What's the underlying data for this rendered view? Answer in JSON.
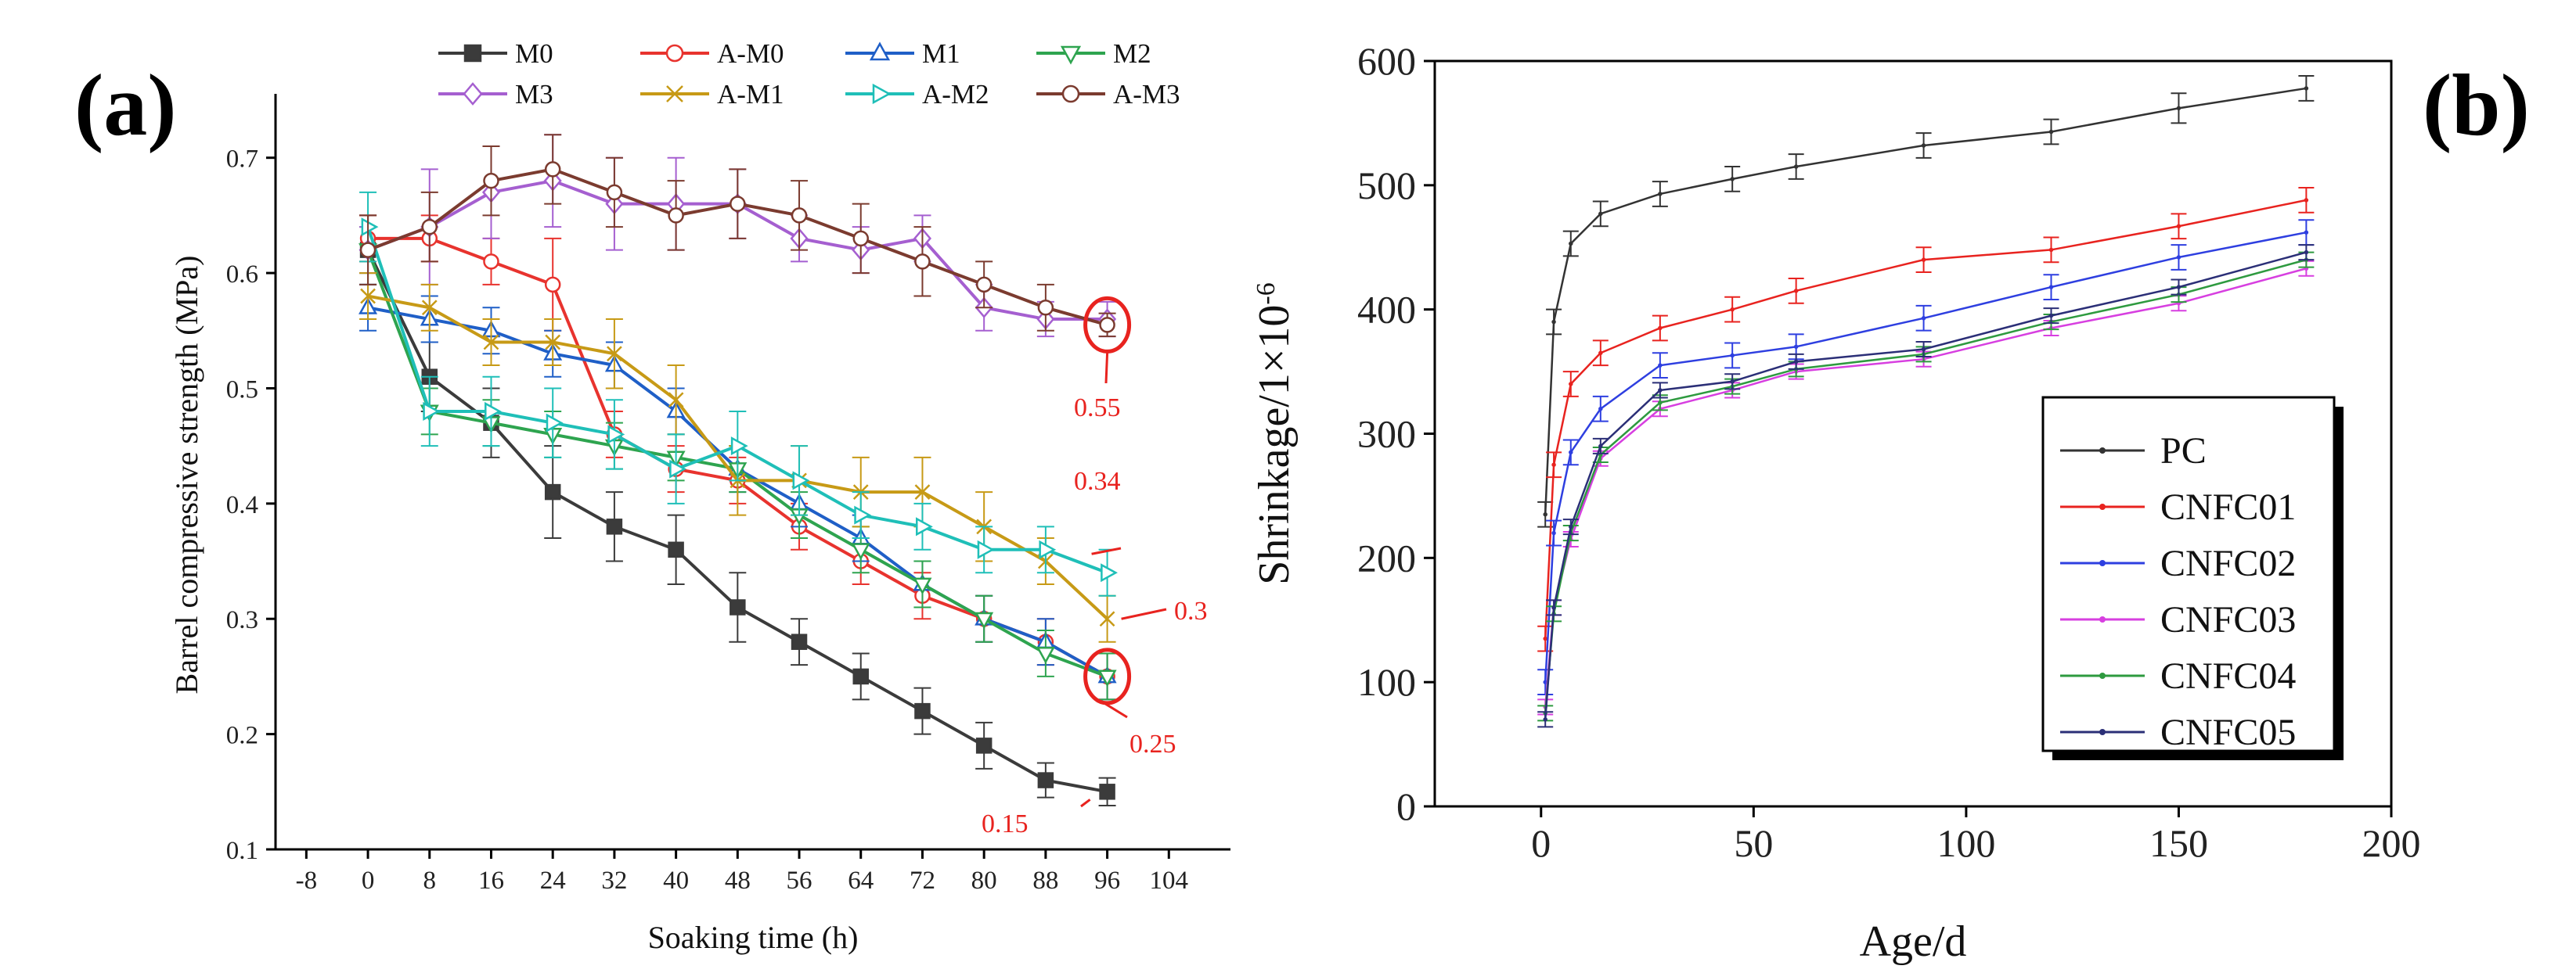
{
  "panel_labels": {
    "a": "(a)",
    "b": "(b)"
  },
  "annotations": [
    {
      "text": "0.55",
      "color": "#e8231f",
      "series": "A-M3",
      "x": 96,
      "y": 0.555,
      "circled": true
    },
    {
      "text": "0.34",
      "color": "#e8231f",
      "series": "A-M2",
      "x": 96,
      "y": 0.34,
      "circled": false
    },
    {
      "text": "0.3",
      "color": "#e8231f",
      "series": "A-M1",
      "x": 96,
      "y": 0.3,
      "circled": false
    },
    {
      "text": "0.25",
      "color": "#e8231f",
      "series": "M2",
      "x": 96,
      "y": 0.25,
      "circled": true
    },
    {
      "text": "0.15",
      "color": "#e8231f",
      "series": "M0",
      "x": 96,
      "y": 0.15,
      "circled": false
    }
  ],
  "chart_data": [
    {
      "type": "line",
      "id": "a",
      "title": "",
      "xlabel": "Soaking time (h)",
      "ylabel": "Barrel compressive strength (MPa)",
      "xlim": [
        -12,
        112
      ],
      "ylim": [
        0.1,
        0.75
      ],
      "xticks": [
        -8,
        0,
        8,
        16,
        24,
        32,
        40,
        48,
        56,
        64,
        72,
        80,
        88,
        96,
        104
      ],
      "yticks": [
        0.1,
        0.2,
        0.3,
        0.4,
        0.5,
        0.6,
        0.7
      ],
      "legend_position": "top",
      "x": [
        0,
        8,
        16,
        24,
        32,
        40,
        48,
        56,
        64,
        72,
        80,
        88,
        96
      ],
      "series": [
        {
          "name": "M0",
          "marker": "square",
          "color": "#3b3b3b",
          "values": [
            0.62,
            0.51,
            0.47,
            0.41,
            0.38,
            0.36,
            0.31,
            0.28,
            0.25,
            0.22,
            0.19,
            0.16,
            0.15
          ],
          "errors": [
            0.03,
            0.03,
            0.03,
            0.04,
            0.03,
            0.03,
            0.03,
            0.02,
            0.02,
            0.02,
            0.02,
            0.015,
            0.012
          ]
        },
        {
          "name": "A-M0",
          "marker": "circle",
          "color": "#e8332e",
          "values": [
            0.63,
            0.63,
            0.61,
            0.59,
            0.46,
            0.43,
            0.42,
            0.38,
            0.35,
            0.32,
            0.3,
            0.28,
            0.25
          ],
          "errors": [
            0.02,
            0.02,
            0.02,
            0.04,
            0.02,
            0.02,
            0.02,
            0.02,
            0.02,
            0.02,
            0.02,
            0.02,
            0.02
          ]
        },
        {
          "name": "M1",
          "marker": "triangle-up",
          "color": "#1f5fc7",
          "values": [
            0.57,
            0.56,
            0.55,
            0.53,
            0.52,
            0.48,
            0.43,
            0.4,
            0.37,
            0.33,
            0.3,
            0.28,
            0.25
          ],
          "errors": [
            0.02,
            0.02,
            0.02,
            0.02,
            0.02,
            0.02,
            0.02,
            0.02,
            0.02,
            0.02,
            0.02,
            0.02,
            0.02
          ]
        },
        {
          "name": "M2",
          "marker": "triangle-down",
          "color": "#2ea44f",
          "values": [
            0.62,
            0.48,
            0.47,
            0.46,
            0.45,
            0.44,
            0.43,
            0.39,
            0.36,
            0.33,
            0.3,
            0.27,
            0.25
          ],
          "errors": [
            0.02,
            0.02,
            0.02,
            0.02,
            0.02,
            0.02,
            0.02,
            0.02,
            0.02,
            0.02,
            0.02,
            0.02,
            0.02
          ]
        },
        {
          "name": "M3",
          "marker": "diamond",
          "color": "#a55fd0",
          "values": [
            0.62,
            0.64,
            0.67,
            0.68,
            0.66,
            0.66,
            0.66,
            0.63,
            0.62,
            0.63,
            0.57,
            0.56,
            0.56
          ],
          "errors": [
            0.02,
            0.05,
            0.04,
            0.04,
            0.04,
            0.04,
            0.03,
            0.02,
            0.02,
            0.02,
            0.02,
            0.015,
            0.015
          ]
        },
        {
          "name": "A-M1",
          "marker": "x",
          "color": "#c79a16",
          "values": [
            0.58,
            0.57,
            0.54,
            0.54,
            0.53,
            0.49,
            0.42,
            0.42,
            0.41,
            0.41,
            0.38,
            0.35,
            0.3
          ],
          "errors": [
            0.02,
            0.02,
            0.02,
            0.02,
            0.03,
            0.03,
            0.03,
            0.03,
            0.03,
            0.03,
            0.03,
            0.02,
            0.02
          ]
        },
        {
          "name": "A-M2",
          "marker": "triangle-right",
          "color": "#1fbfb8",
          "values": [
            0.64,
            0.48,
            0.48,
            0.47,
            0.46,
            0.43,
            0.45,
            0.42,
            0.39,
            0.38,
            0.36,
            0.36,
            0.34
          ],
          "errors": [
            0.03,
            0.03,
            0.03,
            0.03,
            0.03,
            0.03,
            0.03,
            0.03,
            0.02,
            0.02,
            0.02,
            0.02,
            0.02
          ]
        },
        {
          "name": "A-M3",
          "marker": "circle",
          "color": "#7b3b2f",
          "values": [
            0.62,
            0.64,
            0.68,
            0.69,
            0.67,
            0.65,
            0.66,
            0.65,
            0.63,
            0.61,
            0.59,
            0.57,
            0.555
          ],
          "errors": [
            0.03,
            0.03,
            0.03,
            0.03,
            0.03,
            0.03,
            0.03,
            0.03,
            0.03,
            0.03,
            0.02,
            0.02,
            0.01
          ]
        }
      ]
    },
    {
      "type": "line",
      "id": "b",
      "title": "",
      "xlabel": "Age/d",
      "ylabel": "Shrinkage/1×10",
      "ylabel_superscript": "-6",
      "xlim": [
        -25,
        200
      ],
      "ylim": [
        0,
        600
      ],
      "xticks": [
        0,
        50,
        100,
        150,
        200
      ],
      "yticks": [
        0,
        100,
        200,
        300,
        400,
        500,
        600
      ],
      "legend_position": "lower-right",
      "x": [
        1,
        3,
        7,
        14,
        28,
        45,
        60,
        90,
        120,
        150,
        180
      ],
      "series": [
        {
          "name": "PC",
          "color": "#333333",
          "values": [
            235,
            390,
            453,
            477,
            493,
            505,
            515,
            532,
            543,
            562,
            578
          ],
          "errors": [
            10,
            10,
            10,
            10,
            10,
            10,
            10,
            10,
            10,
            12,
            10
          ]
        },
        {
          "name": "CNFC01",
          "color": "#e8231f",
          "values": [
            135,
            275,
            340,
            365,
            385,
            400,
            415,
            440,
            448,
            467,
            488
          ],
          "errors": [
            10,
            10,
            10,
            10,
            10,
            10,
            10,
            10,
            10,
            10,
            10
          ]
        },
        {
          "name": "CNFC02",
          "color": "#2e3fe0",
          "values": [
            100,
            220,
            285,
            320,
            355,
            363,
            370,
            393,
            418,
            442,
            462
          ],
          "errors": [
            10,
            10,
            10,
            10,
            10,
            10,
            10,
            10,
            10,
            10,
            10
          ]
        },
        {
          "name": "CNFC03",
          "color": "#d73fe0",
          "values": [
            80,
            160,
            215,
            280,
            320,
            335,
            350,
            360,
            385,
            405,
            433
          ],
          "errors": [
            6,
            6,
            6,
            6,
            6,
            6,
            6,
            6,
            6,
            6,
            6
          ]
        },
        {
          "name": "CNFC04",
          "color": "#2e9a3f",
          "values": [
            75,
            155,
            220,
            283,
            325,
            338,
            352,
            364,
            390,
            412,
            440
          ],
          "errors": [
            6,
            6,
            6,
            6,
            6,
            6,
            6,
            6,
            6,
            6,
            6
          ]
        },
        {
          "name": "CNFC05",
          "color": "#2b2f77",
          "values": [
            70,
            160,
            225,
            290,
            335,
            342,
            358,
            368,
            395,
            418,
            446
          ],
          "errors": [
            6,
            6,
            6,
            6,
            6,
            6,
            6,
            6,
            6,
            6,
            6
          ]
        }
      ]
    }
  ]
}
